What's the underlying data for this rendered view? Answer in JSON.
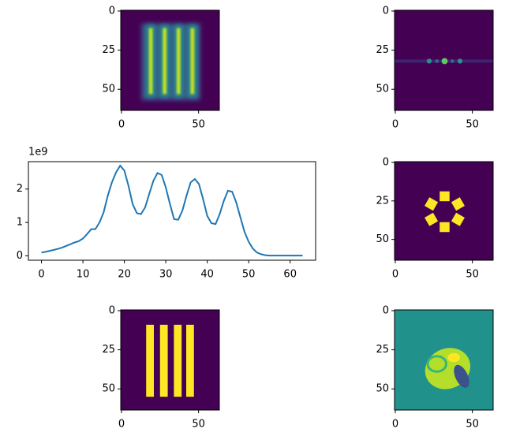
{
  "chart_data": [
    {
      "type": "image",
      "xlim": [
        -0.5,
        63.5
      ],
      "ylim": [
        63.5,
        -0.5
      ],
      "xticks": [
        0,
        50
      ],
      "yticks": [
        0,
        25,
        50
      ]
    },
    {
      "type": "image",
      "xlim": [
        -0.5,
        63.5
      ],
      "ylim": [
        63.5,
        -0.5
      ],
      "xticks": [
        0,
        50
      ],
      "yticks": [
        0,
        25,
        50
      ]
    },
    {
      "type": "line",
      "offset_label": "1e9",
      "color": "#1f77b4",
      "x": [
        0,
        1,
        2,
        3,
        4,
        5,
        6,
        7,
        8,
        9,
        10,
        11,
        12,
        13,
        14,
        15,
        16,
        17,
        18,
        19,
        20,
        21,
        22,
        23,
        24,
        25,
        26,
        27,
        28,
        29,
        30,
        31,
        32,
        33,
        34,
        35,
        36,
        37,
        38,
        39,
        40,
        41,
        42,
        43,
        44,
        45,
        46,
        47,
        48,
        49,
        50,
        51,
        52,
        53,
        54,
        55,
        56,
        57,
        58,
        59,
        60,
        61,
        62,
        63
      ],
      "values": [
        0.1,
        0.12,
        0.15,
        0.18,
        0.21,
        0.25,
        0.3,
        0.35,
        0.4,
        0.44,
        0.52,
        0.65,
        0.8,
        0.8,
        1.0,
        1.3,
        1.8,
        2.2,
        2.5,
        2.7,
        2.55,
        2.1,
        1.55,
        1.28,
        1.25,
        1.45,
        1.85,
        2.25,
        2.48,
        2.42,
        2.05,
        1.55,
        1.1,
        1.08,
        1.35,
        1.8,
        2.2,
        2.3,
        2.15,
        1.7,
        1.2,
        0.98,
        0.95,
        1.25,
        1.65,
        1.95,
        1.92,
        1.6,
        1.15,
        0.72,
        0.42,
        0.22,
        0.1,
        0.05,
        0.02,
        0.01,
        0.01,
        0.01,
        0.01,
        0.01,
        0.01,
        0.01,
        0.01,
        0.01
      ],
      "xlim": [
        -3.15,
        66.15
      ],
      "ylim": [
        -0.13,
        2.82
      ],
      "xticks": [
        0,
        10,
        20,
        30,
        40,
        50,
        60
      ],
      "yticks": [
        0,
        1,
        2
      ]
    },
    {
      "type": "image",
      "xlim": [
        -0.5,
        63.5
      ],
      "ylim": [
        63.5,
        -0.5
      ],
      "xticks": [
        0,
        50
      ],
      "yticks": [
        0,
        25,
        50
      ]
    },
    {
      "type": "image",
      "xlim": [
        -0.5,
        63.5
      ],
      "ylim": [
        63.5,
        -0.5
      ],
      "xticks": [
        0,
        50
      ],
      "yticks": [
        0,
        25,
        50
      ]
    },
    {
      "type": "image",
      "xlim": [
        -0.5,
        63.5
      ],
      "ylim": [
        63.5,
        -0.5
      ],
      "xticks": [
        0,
        50
      ],
      "yticks": [
        0,
        25,
        50
      ]
    }
  ]
}
